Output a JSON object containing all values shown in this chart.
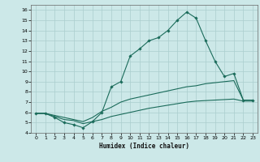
{
  "xlabel": "Humidex (Indice chaleur)",
  "background_color": "#cce8e8",
  "grid_color": "#aacece",
  "line_color": "#1a6b5a",
  "xlim": [
    -0.5,
    23.5
  ],
  "ylim": [
    4.0,
    16.5
  ],
  "xticks": [
    0,
    1,
    2,
    3,
    4,
    5,
    6,
    7,
    8,
    9,
    10,
    11,
    12,
    13,
    14,
    15,
    16,
    17,
    18,
    19,
    20,
    21,
    22,
    23
  ],
  "yticks": [
    4,
    5,
    6,
    7,
    8,
    9,
    10,
    11,
    12,
    13,
    14,
    15,
    16
  ],
  "line1_x": [
    0,
    1,
    2,
    3,
    4,
    5,
    6,
    7,
    8,
    9,
    10,
    11,
    12,
    13,
    14,
    15,
    16,
    17,
    18,
    19,
    20,
    21,
    22,
    23
  ],
  "line1_y": [
    5.9,
    5.9,
    5.5,
    5.0,
    4.8,
    4.5,
    5.1,
    6.0,
    8.5,
    9.0,
    11.5,
    12.2,
    13.0,
    13.3,
    14.0,
    15.0,
    15.8,
    15.2,
    13.0,
    11.0,
    9.5,
    9.8,
    7.2,
    7.2
  ],
  "line2_x": [
    0,
    1,
    2,
    3,
    4,
    5,
    6,
    7,
    8,
    9,
    10,
    11,
    12,
    13,
    14,
    15,
    16,
    17,
    18,
    19,
    20,
    21,
    22,
    23
  ],
  "line2_y": [
    5.9,
    5.9,
    5.7,
    5.5,
    5.3,
    5.1,
    5.5,
    6.1,
    6.5,
    7.0,
    7.3,
    7.5,
    7.7,
    7.9,
    8.1,
    8.3,
    8.5,
    8.6,
    8.8,
    8.9,
    9.0,
    9.1,
    7.2,
    7.2
  ],
  "line3_x": [
    0,
    1,
    2,
    3,
    4,
    5,
    6,
    7,
    8,
    9,
    10,
    11,
    12,
    13,
    14,
    15,
    16,
    17,
    18,
    19,
    20,
    21,
    22,
    23
  ],
  "line3_y": [
    5.9,
    5.9,
    5.6,
    5.3,
    5.2,
    4.9,
    5.1,
    5.3,
    5.6,
    5.8,
    6.0,
    6.2,
    6.4,
    6.55,
    6.7,
    6.85,
    7.0,
    7.1,
    7.15,
    7.2,
    7.25,
    7.3,
    7.1,
    7.1
  ]
}
